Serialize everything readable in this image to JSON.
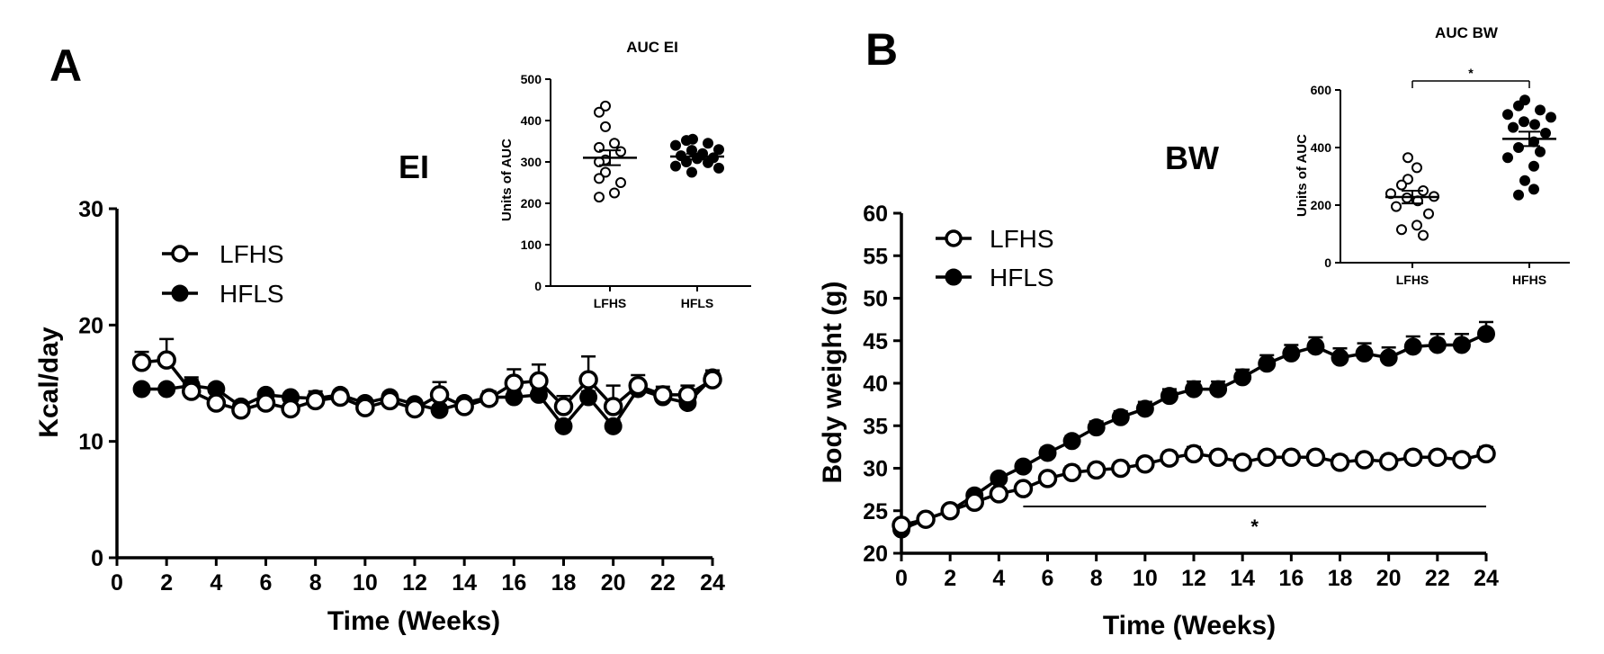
{
  "figure": {
    "panel_a_letter": "A",
    "panel_b_letter": "B"
  },
  "chart_data": [
    {
      "id": "ei",
      "type": "line",
      "title": "EI",
      "xlabel": "Time (Weeks)",
      "ylabel": "Kcal/day",
      "xlim": [
        0,
        24
      ],
      "ylim": [
        0,
        30
      ],
      "xticks": [
        0,
        2,
        4,
        6,
        8,
        10,
        12,
        14,
        16,
        18,
        20,
        22,
        24
      ],
      "yticks": [
        0,
        10,
        20,
        30
      ],
      "legend_position": "top-left",
      "series": [
        {
          "name": "LFHS",
          "marker": "open-circle",
          "x": [
            1,
            2,
            3,
            4,
            5,
            6,
            7,
            8,
            9,
            10,
            11,
            12,
            13,
            14,
            15,
            16,
            17,
            18,
            19,
            20,
            21,
            22,
            23,
            24
          ],
          "y": [
            16.8,
            17.0,
            14.3,
            13.3,
            12.7,
            13.3,
            12.8,
            13.5,
            13.8,
            12.9,
            13.5,
            12.8,
            14.0,
            13.0,
            13.7,
            15.0,
            15.2,
            13.0,
            15.3,
            13.0,
            14.8,
            14.0,
            14.0,
            15.3
          ],
          "err": [
            0.9,
            1.8,
            1.0,
            0.5,
            0.6,
            0.5,
            0.5,
            0.8,
            0.5,
            0.5,
            0.6,
            0.6,
            1.1,
            0.6,
            0.6,
            1.2,
            1.4,
            0.9,
            2.0,
            1.8,
            0.9,
            0.7,
            0.8,
            0.8
          ]
        },
        {
          "name": "HFLS",
          "marker": "filled-circle",
          "x": [
            1,
            2,
            3,
            4,
            5,
            6,
            7,
            8,
            9,
            10,
            11,
            12,
            13,
            14,
            15,
            16,
            17,
            18,
            19,
            20,
            21,
            22,
            23,
            24
          ],
          "y": [
            14.5,
            14.5,
            14.8,
            14.5,
            13.0,
            14.0,
            13.8,
            13.7,
            14.0,
            13.3,
            13.8,
            13.2,
            12.7,
            13.3,
            13.8,
            13.8,
            14.0,
            11.3,
            13.8,
            11.3,
            14.5,
            13.8,
            13.3,
            15.5
          ],
          "err": [
            0.3,
            0.3,
            0.7,
            0.4,
            0.4,
            0.3,
            0.3,
            0.4,
            0.4,
            0.4,
            0.4,
            0.4,
            0.4,
            0.4,
            0.4,
            0.5,
            0.5,
            0.5,
            0.5,
            0.5,
            0.5,
            0.5,
            0.5,
            0.6
          ]
        }
      ]
    },
    {
      "id": "auc_ei",
      "type": "scatter",
      "title": "AUC EI",
      "xlabel": "",
      "ylabel": "Units of AUC",
      "ylim": [
        0,
        500
      ],
      "yticks": [
        0,
        100,
        200,
        300,
        400,
        500
      ],
      "categories": [
        "LFHS",
        "HFLS"
      ],
      "groups": [
        {
          "name": "LFHS",
          "marker": "open-circle",
          "mean": 310,
          "sem": 18,
          "points": [
            435,
            420,
            385,
            345,
            335,
            325,
            305,
            300,
            275,
            260,
            250,
            225,
            215
          ]
        },
        {
          "name": "HFLS",
          "marker": "filled-circle",
          "mean": 313,
          "sem": 7,
          "points": [
            355,
            352,
            345,
            340,
            330,
            328,
            320,
            315,
            310,
            308,
            300,
            298,
            290,
            285,
            275
          ]
        }
      ]
    },
    {
      "id": "bw",
      "type": "line",
      "title": "BW",
      "xlabel": "Time (Weeks)",
      "ylabel": "Body weight (g)",
      "xlim": [
        0,
        24
      ],
      "ylim": [
        20,
        60
      ],
      "xticks": [
        0,
        2,
        4,
        6,
        8,
        10,
        12,
        14,
        16,
        18,
        20,
        22,
        24
      ],
      "yticks": [
        20,
        25,
        30,
        35,
        40,
        45,
        50,
        55,
        60
      ],
      "legend_position": "top-left",
      "significance": {
        "label": "*",
        "x_start": 5,
        "x_end": 24,
        "y": 25.5
      },
      "series": [
        {
          "name": "LFHS",
          "marker": "open-circle",
          "x": [
            0,
            1,
            2,
            3,
            4,
            5,
            6,
            7,
            8,
            9,
            10,
            11,
            12,
            13,
            14,
            15,
            16,
            17,
            18,
            19,
            20,
            21,
            22,
            23,
            24
          ],
          "y": [
            23.3,
            24.0,
            25.0,
            26.0,
            27.0,
            27.6,
            28.8,
            29.5,
            29.8,
            30.0,
            30.5,
            31.2,
            31.7,
            31.3,
            30.7,
            31.3,
            31.3,
            31.3,
            30.7,
            31.0,
            30.8,
            31.3,
            31.3,
            31.0,
            31.7
          ],
          "err": [
            0.4,
            0.4,
            0.4,
            0.5,
            0.5,
            0.6,
            0.6,
            0.7,
            0.7,
            0.7,
            0.7,
            0.7,
            0.8,
            0.7,
            0.7,
            0.7,
            0.7,
            0.7,
            0.7,
            0.7,
            0.7,
            0.7,
            0.7,
            0.7,
            0.8
          ]
        },
        {
          "name": "HFLS",
          "marker": "filled-circle",
          "x": [
            0,
            1,
            2,
            3,
            4,
            5,
            6,
            7,
            8,
            9,
            10,
            11,
            12,
            13,
            14,
            15,
            16,
            17,
            18,
            19,
            20,
            21,
            22,
            23,
            24
          ],
          "y": [
            22.8,
            24.0,
            25.0,
            26.8,
            28.8,
            30.2,
            31.8,
            33.2,
            34.8,
            36.0,
            37.0,
            38.5,
            39.3,
            39.3,
            40.7,
            42.3,
            43.5,
            44.3,
            43.0,
            43.5,
            43.0,
            44.3,
            44.5,
            44.5,
            45.8
          ],
          "err": [
            0.4,
            0.4,
            0.4,
            0.5,
            0.5,
            0.5,
            0.6,
            0.6,
            0.7,
            0.7,
            0.8,
            0.8,
            0.9,
            0.9,
            0.9,
            1.0,
            1.0,
            1.1,
            1.1,
            1.2,
            1.2,
            1.2,
            1.3,
            1.3,
            1.4
          ]
        }
      ]
    },
    {
      "id": "auc_bw",
      "type": "scatter",
      "title": "AUC  BW",
      "xlabel": "",
      "ylabel": "Units of AUC",
      "ylim": [
        0,
        600
      ],
      "yticks": [
        0,
        200,
        400,
        600
      ],
      "categories": [
        "LFHS",
        "HFHS"
      ],
      "significance": {
        "label": "*"
      },
      "groups": [
        {
          "name": "LFHS",
          "marker": "open-circle",
          "mean": 228,
          "sem": 22,
          "points": [
            365,
            330,
            290,
            270,
            250,
            240,
            230,
            225,
            215,
            195,
            170,
            130,
            115,
            95
          ]
        },
        {
          "name": "HFHS",
          "marker": "filled-circle",
          "mean": 430,
          "sem": 25,
          "points": [
            565,
            545,
            530,
            515,
            505,
            490,
            480,
            470,
            450,
            420,
            400,
            385,
            365,
            335,
            285,
            255,
            235
          ]
        }
      ]
    }
  ]
}
